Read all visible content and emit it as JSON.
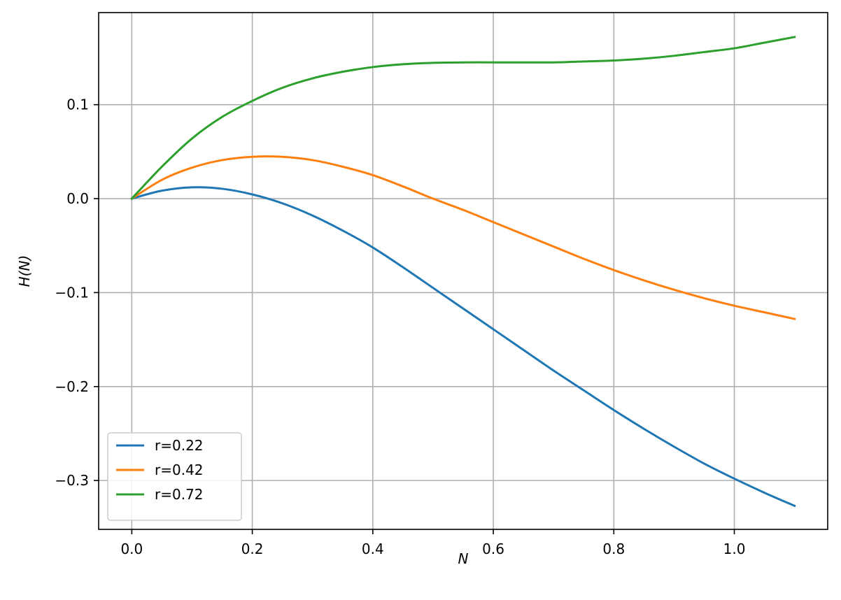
{
  "chart_data": {
    "type": "line",
    "xlabel": "N",
    "ylabel": "H(N)",
    "xlim": [
      -0.055,
      1.155
    ],
    "ylim": [
      -0.352,
      0.198
    ],
    "xticks": [
      0.0,
      0.2,
      0.4,
      0.6,
      0.8,
      1.0
    ],
    "xtick_labels": [
      "0.0",
      "0.2",
      "0.4",
      "0.6",
      "0.8",
      "1.0"
    ],
    "yticks": [
      0.1,
      0.0,
      -0.1,
      -0.2,
      -0.3
    ],
    "ytick_labels": [
      "0.1",
      "0.0",
      "−0.1",
      "−0.2",
      "−0.3"
    ],
    "grid": true,
    "legend_position": "lower-left",
    "series": [
      {
        "name": "r=0.22",
        "color": "#1f77b4",
        "x": [
          0.0,
          0.05,
          0.1,
          0.15,
          0.2,
          0.25,
          0.3,
          0.35,
          0.4,
          0.45,
          0.5,
          0.55,
          0.6,
          0.65,
          0.7,
          0.75,
          0.8,
          0.85,
          0.9,
          0.95,
          1.0,
          1.05,
          1.1
        ],
        "y": [
          0.0,
          0.0085,
          0.012,
          0.0105,
          0.0045,
          -0.005,
          -0.018,
          -0.034,
          -0.052,
          -0.073,
          -0.095,
          -0.117,
          -0.139,
          -0.161,
          -0.183,
          -0.204,
          -0.225,
          -0.245,
          -0.264,
          -0.282,
          -0.298,
          -0.313,
          -0.327
        ]
      },
      {
        "name": "r=0.42",
        "color": "#ff7f0e",
        "x": [
          0.0,
          0.05,
          0.1,
          0.15,
          0.2,
          0.25,
          0.3,
          0.35,
          0.4,
          0.45,
          0.5,
          0.55,
          0.6,
          0.65,
          0.7,
          0.75,
          0.8,
          0.85,
          0.9,
          0.95,
          1.0,
          1.05,
          1.1
        ],
        "y": [
          0.0,
          0.02,
          0.033,
          0.041,
          0.0445,
          0.0445,
          0.041,
          0.034,
          0.025,
          0.013,
          0.0,
          -0.012,
          -0.025,
          -0.038,
          -0.051,
          -0.064,
          -0.076,
          -0.087,
          -0.097,
          -0.106,
          -0.114,
          -0.121,
          -0.128
        ]
      },
      {
        "name": "r=0.72",
        "color": "#2ca02c",
        "x": [
          0.0,
          0.05,
          0.1,
          0.15,
          0.2,
          0.25,
          0.3,
          0.35,
          0.4,
          0.45,
          0.5,
          0.55,
          0.6,
          0.65,
          0.7,
          0.75,
          0.8,
          0.85,
          0.9,
          0.95,
          1.0,
          1.05,
          1.1
        ],
        "y": [
          0.0,
          0.034,
          0.064,
          0.087,
          0.104,
          0.118,
          0.128,
          0.135,
          0.14,
          0.143,
          0.1445,
          0.145,
          0.145,
          0.145,
          0.145,
          0.146,
          0.147,
          0.149,
          0.152,
          0.156,
          0.16,
          0.166,
          0.172
        ]
      }
    ]
  }
}
